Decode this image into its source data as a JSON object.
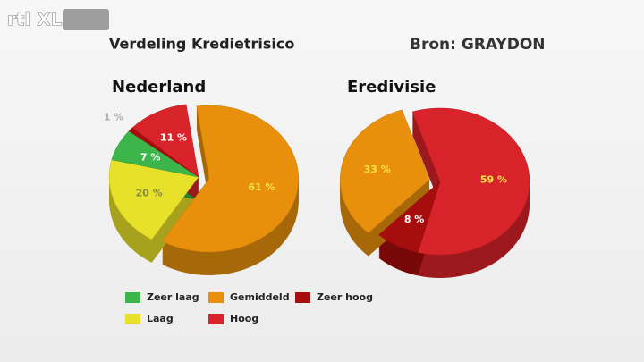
{
  "logo": "rtl XL",
  "title": "Verdeling Kredietrisico",
  "source": "Bron: GRAYDON",
  "legend": [
    {
      "name": "Zeer laag",
      "color": "#3cb54a"
    },
    {
      "name": "Gemiddeld",
      "color": "#e8900c"
    },
    {
      "name": "Zeer hoog",
      "color": "#a60d0d"
    },
    {
      "name": "Laag",
      "color": "#e8e12a"
    },
    {
      "name": "Hoog",
      "color": "#d8232a"
    }
  ],
  "chart_data": [
    {
      "type": "pie",
      "title": "Nederland",
      "categories": [
        "Gemiddeld",
        "Laag",
        "Zeer laag",
        "Zeer hoog",
        "Hoog"
      ],
      "values": [
        61,
        20,
        7,
        1,
        11
      ],
      "value_labels": [
        "61 %",
        "20 %",
        "7 %",
        "1 %",
        "11 %"
      ],
      "colors": [
        "#e8900c",
        "#e8e12a",
        "#3cb54a",
        "#a60d0d",
        "#d8232a"
      ],
      "label_colors": [
        "#f6e640",
        "#8a8a40",
        "#ffffff",
        "#b0b0b0",
        "#ffffff"
      ],
      "exploded": "Gemiddeld"
    },
    {
      "type": "pie",
      "title": "Eredivisie",
      "categories": [
        "Hoog",
        "Zeer hoog",
        "Gemiddeld"
      ],
      "values": [
        59,
        8,
        33
      ],
      "value_labels": [
        "59 %",
        "8 %",
        "33 %"
      ],
      "colors": [
        "#d8232a",
        "#a60d0d",
        "#e8900c"
      ],
      "label_colors": [
        "#f6e640",
        "#ffffff",
        "#f6e640"
      ],
      "exploded": "Gemiddeld"
    }
  ]
}
